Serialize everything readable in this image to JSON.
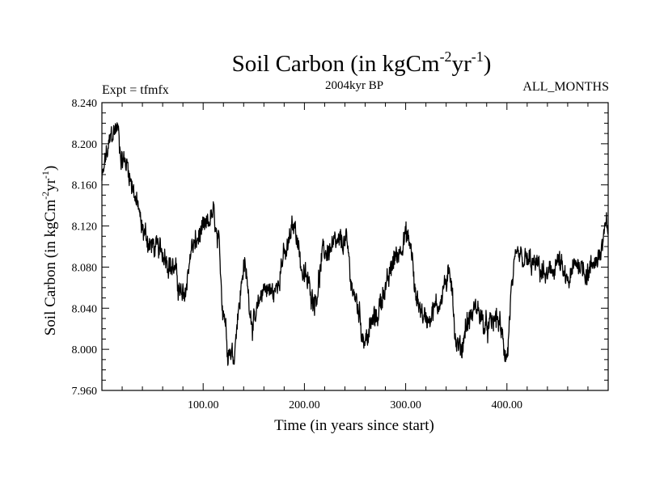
{
  "chart_data": {
    "type": "line",
    "title": "Soil Carbon (in kgCm",
    "title_sup1": "-2",
    "title_mid": "yr",
    "title_sup2": "-1",
    "title_end": ")",
    "subtitle": "2004kyr BP",
    "left_label": "Expt = tfmfx",
    "right_label": "ALL_MONTHS",
    "xlabel": "Time (in years since start)",
    "ylabel": "Soil Carbon (in kgCm",
    "ylabel_sup1": "-2",
    "ylabel_mid": "yr",
    "ylabel_sup2": "-1",
    "ylabel_end": ")",
    "xlim": [
      0,
      500
    ],
    "ylim": [
      7.96,
      8.24
    ],
    "x_ticks": [
      100,
      200,
      300,
      400
    ],
    "x_tick_labels": [
      "100.00",
      "200.00",
      "300.00",
      "400.00"
    ],
    "y_ticks": [
      7.96,
      8.0,
      8.04,
      8.08,
      8.12,
      8.16,
      8.2,
      8.24
    ],
    "y_tick_labels": [
      "7.960",
      "8.000",
      "8.040",
      "8.080",
      "8.120",
      "8.160",
      "8.200",
      "8.240"
    ],
    "series": [
      {
        "name": "Soil Carbon",
        "x": [
          0,
          5,
          10,
          15,
          20,
          25,
          30,
          35,
          40,
          50,
          60,
          70,
          80,
          90,
          100,
          110,
          115,
          120,
          125,
          130,
          135,
          140,
          150,
          160,
          170,
          180,
          190,
          200,
          210,
          220,
          230,
          240,
          250,
          260,
          270,
          280,
          290,
          300,
          305,
          310,
          320,
          330,
          340,
          345,
          350,
          355,
          360,
          370,
          380,
          390,
          400,
          405,
          410,
          420,
          430,
          440,
          450,
          460,
          470,
          480,
          490,
          500
        ],
        "values": [
          8.165,
          8.19,
          8.21,
          8.215,
          8.185,
          8.18,
          8.16,
          8.14,
          8.115,
          8.1,
          8.095,
          8.08,
          8.05,
          8.1,
          8.115,
          8.13,
          8.1,
          8.04,
          8.0,
          7.995,
          8.04,
          8.08,
          8.025,
          8.06,
          8.055,
          8.09,
          8.12,
          8.07,
          8.05,
          8.095,
          8.1,
          8.105,
          8.05,
          8.01,
          8.03,
          8.06,
          8.09,
          8.11,
          8.1,
          8.05,
          8.03,
          8.04,
          8.065,
          8.07,
          8.005,
          8.0,
          8.025,
          8.04,
          8.02,
          8.03,
          7.995,
          8.06,
          8.09,
          8.085,
          8.08,
          8.07,
          8.085,
          8.065,
          8.085,
          8.075,
          8.09,
          8.12
        ]
      }
    ],
    "colors": {
      "line": "#000000",
      "frame": "#000000",
      "background": "#ffffff"
    }
  }
}
